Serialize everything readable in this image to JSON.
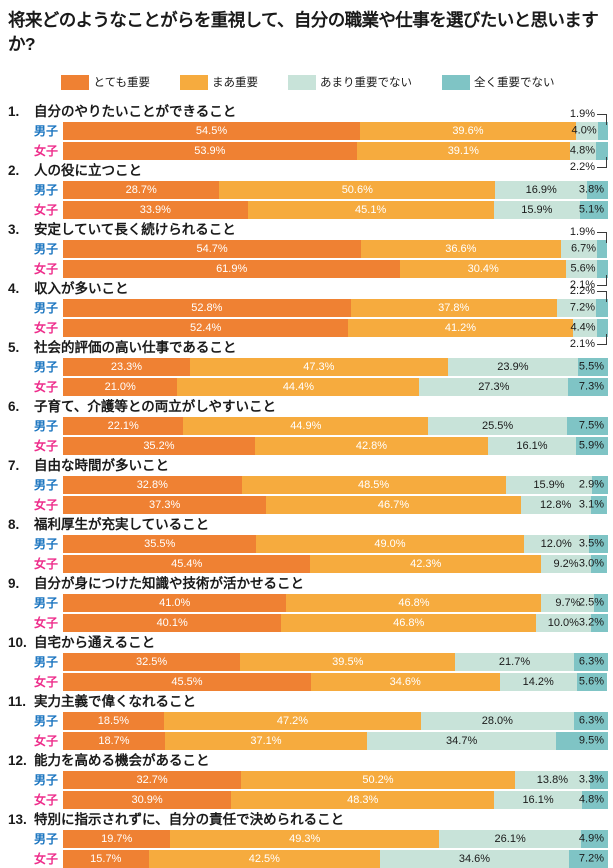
{
  "title": "将来どのようなことがらを重視して、自分の職業や仕事を選びたいと思いますか?",
  "legend": {
    "items": [
      {
        "label": "とても重要",
        "color": "#EF8133"
      },
      {
        "label": "まあ重要",
        "color": "#F6AB3E"
      },
      {
        "label": "あまり重要でない",
        "color": "#C8E3D9"
      },
      {
        "label": "全く重要でない",
        "color": "#7FC4C5"
      }
    ]
  },
  "rows": {
    "male_label": "男子",
    "female_label": "女子",
    "male_color": "#1C76C0",
    "female_color": "#EE2D8B"
  },
  "chart_data": {
    "type": "bar",
    "orientation": "horizontal",
    "stacked": true,
    "unit": "percent",
    "xlim": [
      0,
      100
    ],
    "legend_position": "top",
    "series": [
      "とても重要",
      "まあ重要",
      "あまり重要でない",
      "全く重要でない"
    ],
    "series_colors": [
      "#EF8133",
      "#F6AB3E",
      "#C8E3D9",
      "#7FC4C5"
    ],
    "group_labels": [
      "男子",
      "女子"
    ],
    "questions": [
      {
        "number": "1.",
        "text": "自分のやりたいことができること",
        "rows": [
          {
            "label": "男子",
            "values": [
              54.5,
              39.6,
              4.0,
              1.9
            ],
            "callout": "above"
          },
          {
            "label": "女子",
            "values": [
              53.9,
              39.1,
              4.8,
              2.2
            ],
            "callout": "below"
          }
        ]
      },
      {
        "number": "2.",
        "text": "人の役に立つこと",
        "rows": [
          {
            "label": "男子",
            "values": [
              28.7,
              50.6,
              16.9,
              3.8
            ]
          },
          {
            "label": "女子",
            "values": [
              33.9,
              45.1,
              15.9,
              5.1
            ]
          }
        ]
      },
      {
        "number": "3.",
        "text": "安定していて長く続けられること",
        "rows": [
          {
            "label": "男子",
            "values": [
              54.7,
              36.6,
              6.7,
              1.9
            ],
            "callout": "above"
          },
          {
            "label": "女子",
            "values": [
              61.9,
              30.4,
              5.6,
              2.1
            ],
            "callout": "below"
          }
        ]
      },
      {
        "number": "4.",
        "text": "収入が多いこと",
        "rows": [
          {
            "label": "男子",
            "values": [
              52.8,
              37.8,
              7.2,
              2.2
            ],
            "callout": "above"
          },
          {
            "label": "女子",
            "values": [
              52.4,
              41.2,
              4.4,
              2.1
            ],
            "callout": "below"
          }
        ]
      },
      {
        "number": "5.",
        "text": "社会的評価の高い仕事であること",
        "rows": [
          {
            "label": "男子",
            "values": [
              23.3,
              47.3,
              23.9,
              5.5
            ]
          },
          {
            "label": "女子",
            "values": [
              21.0,
              44.4,
              27.3,
              7.3
            ]
          }
        ]
      },
      {
        "number": "6.",
        "text": "子育て、介護等との両立がしやすいこと",
        "rows": [
          {
            "label": "男子",
            "values": [
              22.1,
              44.9,
              25.5,
              7.5
            ]
          },
          {
            "label": "女子",
            "values": [
              35.2,
              42.8,
              16.1,
              5.9
            ]
          }
        ]
      },
      {
        "number": "7.",
        "text": "自由な時間が多いこと",
        "rows": [
          {
            "label": "男子",
            "values": [
              32.8,
              48.5,
              15.9,
              2.9
            ]
          },
          {
            "label": "女子",
            "values": [
              37.3,
              46.7,
              12.8,
              3.1
            ]
          }
        ]
      },
      {
        "number": "8.",
        "text": "福利厚生が充実していること",
        "rows": [
          {
            "label": "男子",
            "values": [
              35.5,
              49.0,
              12.0,
              3.5
            ]
          },
          {
            "label": "女子",
            "values": [
              45.4,
              42.3,
              9.2,
              3.0
            ]
          }
        ]
      },
      {
        "number": "9.",
        "text": "自分が身につけた知識や技術が活かせること",
        "rows": [
          {
            "label": "男子",
            "values": [
              41.0,
              46.8,
              9.7,
              2.5
            ]
          },
          {
            "label": "女子",
            "values": [
              40.1,
              46.8,
              10.0,
              3.2
            ]
          }
        ]
      },
      {
        "number": "10.",
        "text": "自宅から通えること",
        "rows": [
          {
            "label": "男子",
            "values": [
              32.5,
              39.5,
              21.7,
              6.3
            ]
          },
          {
            "label": "女子",
            "values": [
              45.5,
              34.6,
              14.2,
              5.6
            ]
          }
        ]
      },
      {
        "number": "11.",
        "text": "実力主義で偉くなれること",
        "rows": [
          {
            "label": "男子",
            "values": [
              18.5,
              47.2,
              28.0,
              6.3
            ]
          },
          {
            "label": "女子",
            "values": [
              18.7,
              37.1,
              34.7,
              9.5
            ]
          }
        ]
      },
      {
        "number": "12.",
        "text": "能力を高める機会があること",
        "rows": [
          {
            "label": "男子",
            "values": [
              32.7,
              50.2,
              13.8,
              3.3
            ]
          },
          {
            "label": "女子",
            "values": [
              30.9,
              48.3,
              16.1,
              4.8
            ]
          }
        ]
      },
      {
        "number": "13.",
        "text": "特別に指示されずに、自分の責任で決められること",
        "rows": [
          {
            "label": "男子",
            "values": [
              19.7,
              49.3,
              26.1,
              4.9
            ]
          },
          {
            "label": "女子",
            "values": [
              15.7,
              42.5,
              34.6,
              7.2
            ]
          }
        ]
      }
    ]
  }
}
